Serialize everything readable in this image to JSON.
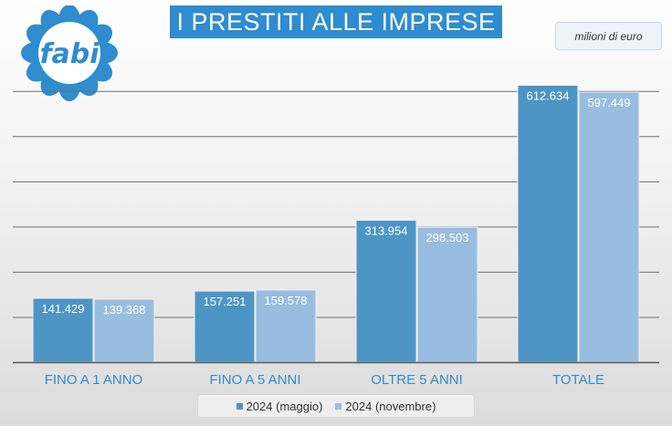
{
  "chart_data": {
    "type": "bar",
    "title": "I PRESTITI ALLE IMPRESE",
    "unit_label": "milioni di euro",
    "categories": [
      "FINO A 1 ANNO",
      "FINO A 5 ANNI",
      "OLTRE 5 ANNI",
      "TOTALE"
    ],
    "series": [
      {
        "name": "2024 (maggio)",
        "values": [
          141429,
          157251,
          313954,
          612634
        ],
        "labels": [
          "141.429",
          "157.251",
          "313.954",
          "612.634"
        ],
        "color": "#4d95c5"
      },
      {
        "name": "2024 (novembre)",
        "values": [
          139368,
          159578,
          298503,
          597449
        ],
        "labels": [
          "139.368",
          "159.578",
          "298.503",
          "597.449"
        ],
        "color": "#98bde0"
      }
    ],
    "ylim": [
      0,
      650000
    ],
    "grid": true,
    "legend_position": "bottom"
  },
  "logo": {
    "text": "fabi",
    "petal_color": "#2f8ccf"
  },
  "colors": {
    "title_bg": "#2f8ccf",
    "category_label": "#2f8ccf",
    "gridline": "#666666"
  }
}
